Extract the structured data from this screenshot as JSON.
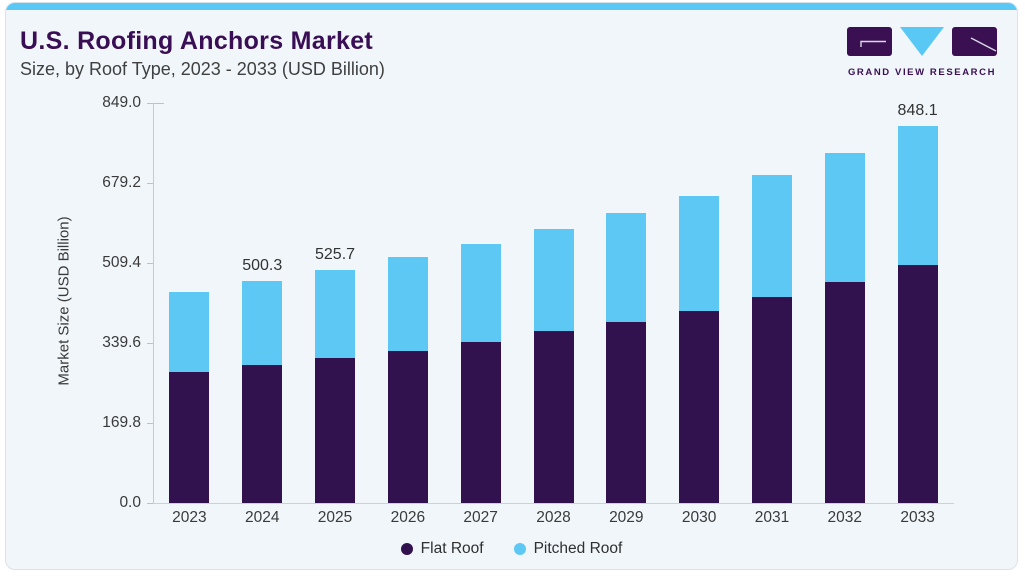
{
  "header": {
    "title": "U.S. Roofing Anchors Market",
    "subtitle": "Size, by Roof Type, 2023 - 2033 (USD Billion)",
    "logo_text": "GRAND VIEW RESEARCH"
  },
  "colors": {
    "flat_roof": "#32124e",
    "pitched_roof": "#5ec8f4",
    "title_purple": "#3a0e55",
    "accent_strip": "#5ac8f5",
    "card_bg": "#f0f6fa",
    "logo_purple": "#3a1053"
  },
  "chart_data": {
    "type": "bar",
    "stacked": true,
    "title": "U.S. Roofing Anchors Market Size, by Roof Type, 2023 - 2033 (USD Billion)",
    "xlabel": "",
    "ylabel": "Market Size (USD Billion)",
    "categories": [
      "2023",
      "2024",
      "2025",
      "2026",
      "2027",
      "2028",
      "2029",
      "2030",
      "2031",
      "2032",
      "2033"
    ],
    "series": [
      {
        "name": "Flat Roof",
        "color": "#32124e",
        "values": [
          295.0,
          310.1,
          326.0,
          343.5,
          363.5,
          386.5,
          408.5,
          433.0,
          463.5,
          498.5,
          535.0
        ]
      },
      {
        "name": "Pitched Roof",
        "color": "#5ec8f4",
        "values": [
          181.2,
          190.2,
          199.7,
          210.3,
          220.6,
          230.5,
          244.3,
          259.5,
          276.0,
          290.8,
          313.1
        ]
      }
    ],
    "totals": [
      476.2,
      500.3,
      525.7,
      553.8,
      584.1,
      617.0,
      652.8,
      692.5,
      739.5,
      789.3,
      848.1
    ],
    "bar_labels": [
      "",
      "500.3",
      "525.7",
      "",
      "",
      "",
      "",
      "",
      "",
      "",
      "848.1"
    ],
    "yticks": [
      0.0,
      169.8,
      339.6,
      509.4,
      679.2,
      849.0
    ],
    "ylim": [
      0,
      849
    ],
    "grid": false,
    "legend_position": "bottom"
  }
}
